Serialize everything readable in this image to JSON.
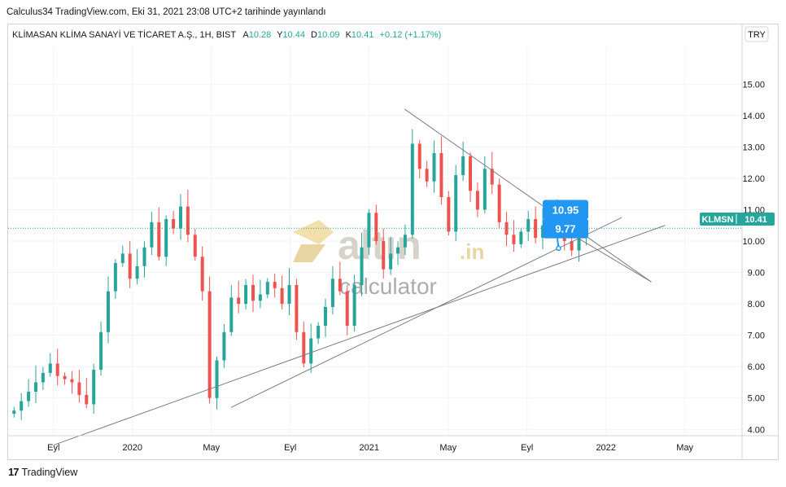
{
  "header": {
    "published": "Calculus34 TradingView.com, Eki 31, 2021 23:08 UTC+2 tarihinde yayınlandı"
  },
  "legend": {
    "symbol": "KLİMASAN KLİMA SANAYİ VE TİCARET A.Ş., 1H, BIST",
    "open_label": "A",
    "open": "10.28",
    "high_label": "Y",
    "high": "10.44",
    "low_label": "D",
    "low": "10.09",
    "close_label": "K",
    "close": "10.41",
    "change": "+0.12 (+1.17%)"
  },
  "currency_button": "TRY",
  "watermark": {
    "brand": "altın",
    "suffix": ".in",
    "sub": "calculator"
  },
  "footer": {
    "brand": "TradingView"
  },
  "colors": {
    "up": "#26a69a",
    "down": "#ef5350",
    "line": "#787b86",
    "callout": "#2196f3",
    "price_tag": "#26a69a"
  },
  "chart_data": {
    "type": "candlestick",
    "ticker": "KLMSN",
    "last_price": "10.41",
    "y_ticks": [
      "15.00",
      "14.00",
      "13.00",
      "12.00",
      "11.00",
      "10.00",
      "9.00",
      "8.00",
      "7.00",
      "6.00",
      "5.00",
      "4.00"
    ],
    "ylim": [
      3.8,
      16.2
    ],
    "x_ticks": [
      {
        "label": "Eyl",
        "t": 9
      },
      {
        "label": "2020",
        "t": 13
      },
      {
        "label": "May",
        "t": 17
      },
      {
        "label": "Eyl",
        "t": 21
      },
      {
        "label": "2021",
        "t": 25
      },
      {
        "label": "May",
        "t": 29
      },
      {
        "label": "Eyl",
        "t": 33
      },
      {
        "label": "2022",
        "t": 37
      },
      {
        "label": "May",
        "t": 41
      }
    ],
    "xlim": [
      6.7,
      43.9
    ],
    "candle_closes": [
      4.6,
      4.9,
      5.2,
      5.5,
      5.8,
      6.1,
      5.7,
      5.6,
      5.5,
      5.1,
      4.8,
      5.9,
      7.1,
      8.4,
      9.3,
      9.6,
      8.8,
      9.2,
      9.8,
      10.6,
      9.5,
      10.7,
      10.4,
      11.1,
      10.2,
      9.5,
      8.4,
      5.0,
      6.2,
      7.1,
      8.2,
      8.0,
      8.6,
      8.1,
      8.3,
      8.7,
      8.5,
      8.0,
      8.6,
      7.1,
      6.1,
      6.9,
      7.3,
      7.9,
      8.8,
      8.4,
      7.3,
      8.6,
      9.8,
      10.9,
      10.0,
      9.1,
      9.6,
      9.8,
      10.2,
      13.1,
      12.3,
      11.9,
      12.8,
      11.4,
      10.3,
      12.1,
      12.7,
      11.6,
      11.0,
      12.3,
      11.8,
      10.6,
      10.2,
      9.9,
      10.3,
      10.7,
      10.1,
      10.5,
      11.0,
      10.3,
      10.0,
      9.7,
      10.1,
      10.4
    ],
    "candle_t_start": 7.0,
    "candle_t_end": 36.0,
    "trendlines": [
      {
        "from": [
          18.0,
          4.7
        ],
        "to": [
          37.8,
          10.75
        ]
      },
      {
        "from": [
          9.0,
          3.5
        ],
        "to": [
          40.0,
          10.5
        ]
      },
      {
        "from": [
          26.8,
          14.2
        ],
        "to": [
          39.3,
          8.7
        ]
      },
      {
        "from": [
          35.3,
          10.2
        ],
        "to": [
          39.3,
          8.7
        ]
      }
    ],
    "callouts": [
      {
        "label": "10.95",
        "t": 34.95,
        "v": 11.0,
        "anchor_t": 34.6,
        "anchor_v": 10.95
      },
      {
        "label": "9.77",
        "t": 34.95,
        "v": 10.4,
        "anchor_t": 34.6,
        "anchor_v": 9.77
      }
    ]
  }
}
